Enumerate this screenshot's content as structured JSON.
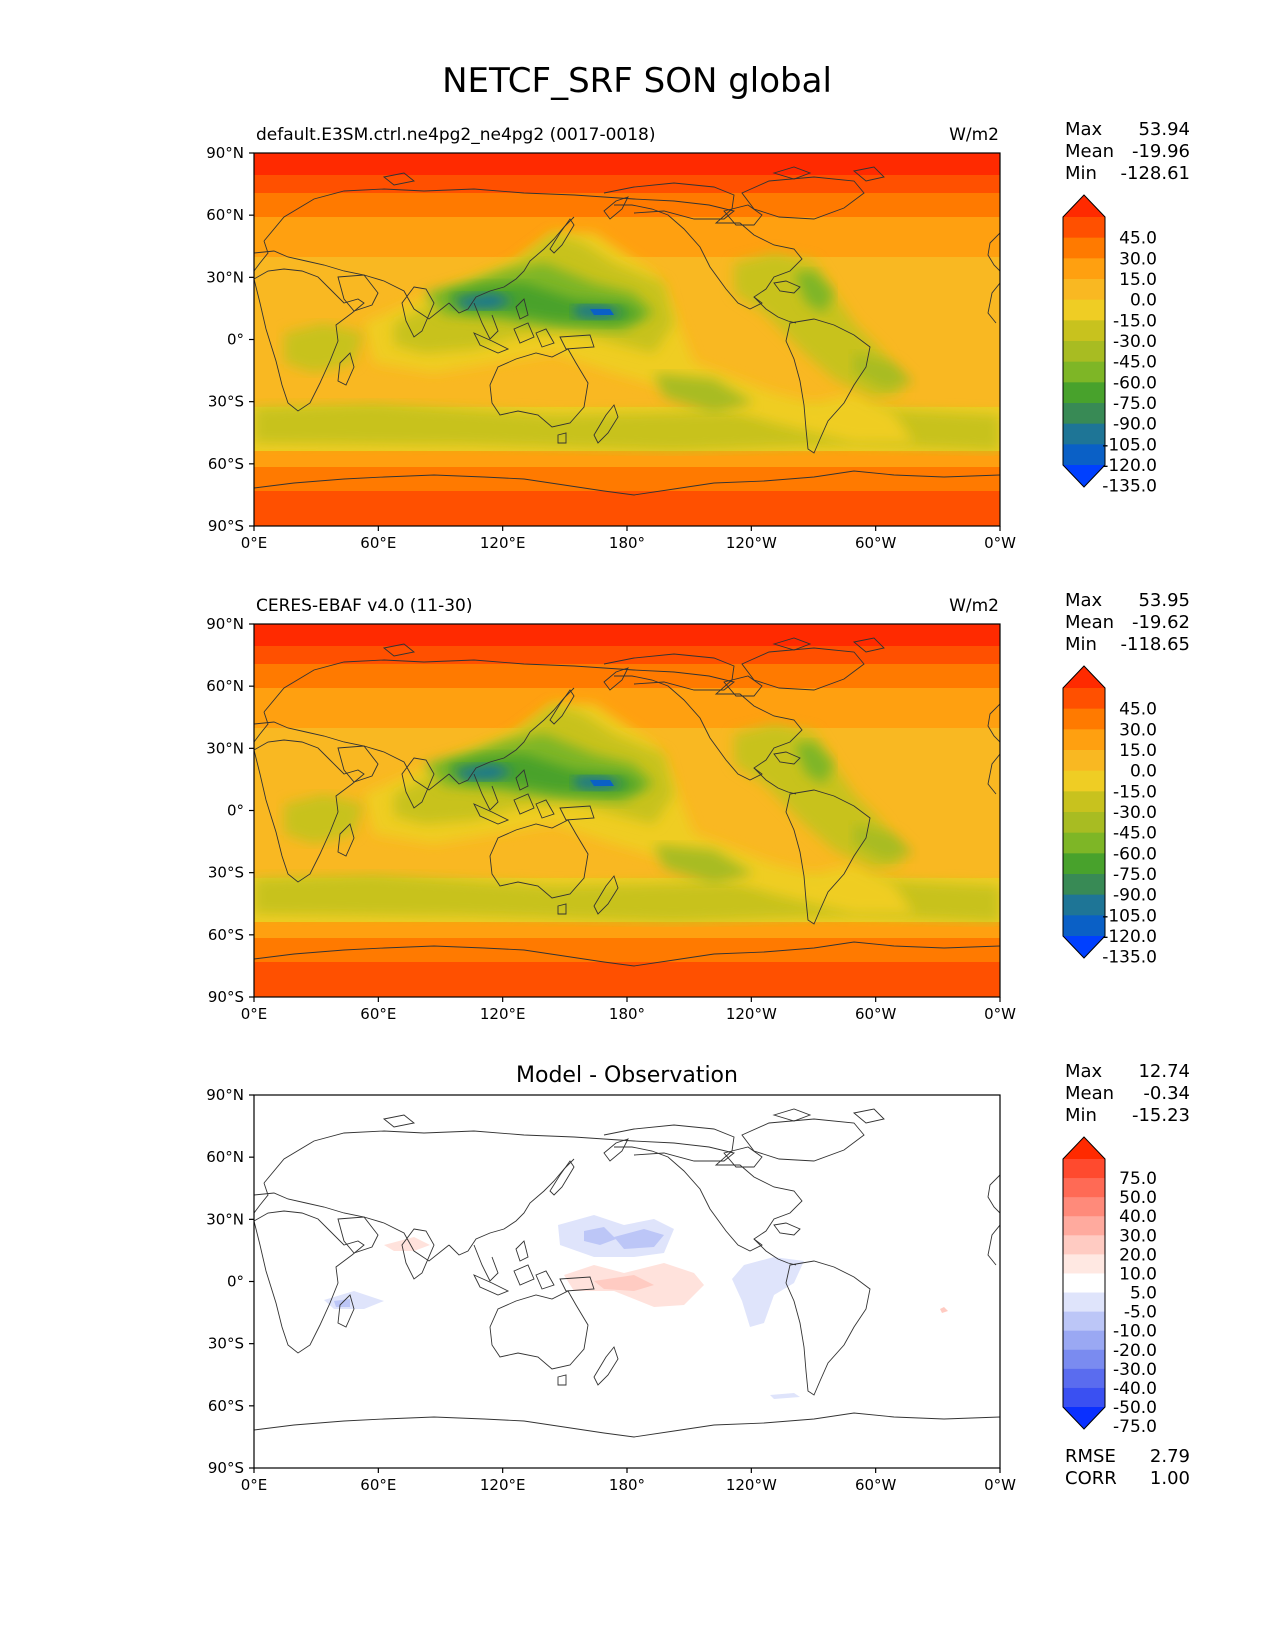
{
  "figure": {
    "title": "NETCF_SRF SON global"
  },
  "panels": [
    {
      "id": "model",
      "left_title": "default.E3SM.ctrl.ne4pg2_ne4pg2 (0017-0018)",
      "center_title": "",
      "units": "W/m2",
      "stats": [
        {
          "label": "Max",
          "value": "53.94"
        },
        {
          "label": "Mean",
          "value": "-19.96"
        },
        {
          "label": "Min",
          "value": "-128.61"
        }
      ],
      "colorbar": {
        "labels": [
          "45.0",
          "30.0",
          "15.0",
          "0.0",
          "-15.0",
          "-30.0",
          "-45.0",
          "-60.0",
          "-75.0",
          "-90.0",
          "-105.0",
          "-120.0",
          "-135.0"
        ],
        "colors": [
          "#ff2a00",
          "#ff5000",
          "#ff7a00",
          "#ffa010",
          "#f9b822",
          "#efcd24",
          "#c8c21e",
          "#a8bc22",
          "#7eb626",
          "#48a22c",
          "#388a55",
          "#1e7596",
          "#0a60c6",
          "#0040ff"
        ]
      }
    },
    {
      "id": "obs",
      "left_title": "CERES-EBAF v4.0 (11-30)",
      "center_title": "",
      "units": "W/m2",
      "stats": [
        {
          "label": "Max",
          "value": "53.95"
        },
        {
          "label": "Mean",
          "value": "-19.62"
        },
        {
          "label": "Min",
          "value": "-118.65"
        }
      ],
      "colorbar": {
        "labels": [
          "45.0",
          "30.0",
          "15.0",
          "0.0",
          "-15.0",
          "-30.0",
          "-45.0",
          "-60.0",
          "-75.0",
          "-90.0",
          "-105.0",
          "-120.0",
          "-135.0"
        ],
        "colors": [
          "#ff2a00",
          "#ff5000",
          "#ff7a00",
          "#ffa010",
          "#f9b822",
          "#efcd24",
          "#c8c21e",
          "#a8bc22",
          "#7eb626",
          "#48a22c",
          "#388a55",
          "#1e7596",
          "#0a60c6",
          "#0040ff"
        ]
      }
    },
    {
      "id": "diff",
      "left_title": "",
      "center_title": "Model - Observation",
      "units": "",
      "stats": [
        {
          "label": "Max",
          "value": "12.74"
        },
        {
          "label": "Mean",
          "value": "-0.34"
        },
        {
          "label": "Min",
          "value": "-15.23"
        }
      ],
      "extra_stats": [
        {
          "label": "RMSE",
          "value": "2.79"
        },
        {
          "label": "CORR",
          "value": "1.00"
        }
      ],
      "colorbar": {
        "labels": [
          "75.0",
          "50.0",
          "40.0",
          "30.0",
          "20.0",
          "10.0",
          "5.0",
          "-5.0",
          "-10.0",
          "-20.0",
          "-30.0",
          "-40.0",
          "-50.0",
          "-75.0"
        ],
        "colors": [
          "#ff2a00",
          "#ff4a2e",
          "#ff6a55",
          "#ff8a7a",
          "#ffaa9e",
          "#ffcbc2",
          "#ffe8e2",
          "#ffffff",
          "#dfe4fb",
          "#bcc6f7",
          "#9aa8f3",
          "#7a8bf0",
          "#5a6cef",
          "#3a50f2",
          "#0a30ff"
        ]
      }
    }
  ],
  "axes": {
    "lat_ticks": [
      "90°N",
      "60°N",
      "30°N",
      "0°",
      "30°S",
      "60°S",
      "90°S"
    ],
    "lon_ticks": [
      "0°E",
      "60°E",
      "120°E",
      "180°",
      "120°W",
      "60°W",
      "0°W"
    ]
  },
  "map_style": {
    "coast_color": "#333333",
    "frame_color": "#000000"
  }
}
